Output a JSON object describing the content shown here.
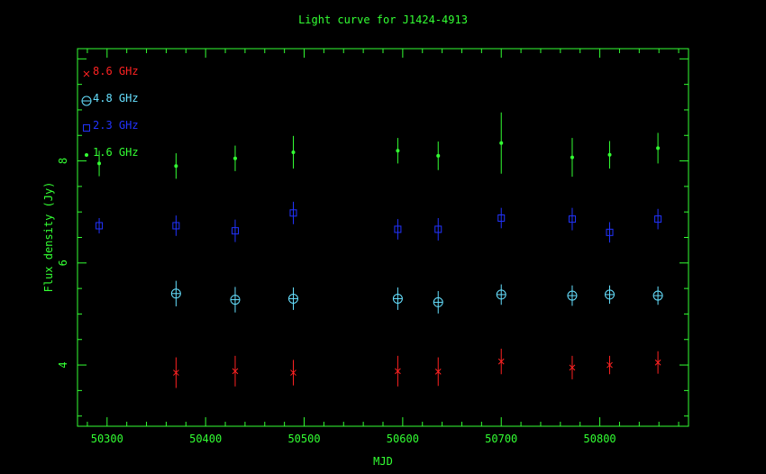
{
  "colors": {
    "background": "#000000",
    "axes": "#33ff33",
    "s8_6": "#ff2222",
    "s4_8": "#66e0ff",
    "s2_3": "#2233ff",
    "s1_6": "#33ff33"
  },
  "chart_data": {
    "type": "scatter",
    "title": "Light curve for J1424-4913",
    "xlabel": "MJD",
    "ylabel": "Flux density (Jy)",
    "xlim": [
      50270,
      50890
    ],
    "ylim": [
      2.8,
      10.2
    ],
    "xticks": [
      50300,
      50400,
      50500,
      50600,
      50700,
      50800
    ],
    "yticks": [
      4,
      6,
      8
    ],
    "grid": false,
    "legend_position": "top-left",
    "series": [
      {
        "name": "8.6 GHz",
        "marker": "x",
        "color": "#ff2222",
        "points": [
          {
            "x": 50370,
            "y": 3.85,
            "err": 0.3
          },
          {
            "x": 50430,
            "y": 3.88,
            "err": 0.3
          },
          {
            "x": 50489,
            "y": 3.85,
            "err": 0.25
          },
          {
            "x": 50595,
            "y": 3.88,
            "err": 0.3
          },
          {
            "x": 50636,
            "y": 3.87,
            "err": 0.28
          },
          {
            "x": 50700,
            "y": 4.07,
            "err": 0.25
          },
          {
            "x": 50772,
            "y": 3.95,
            "err": 0.23
          },
          {
            "x": 50810,
            "y": 4.0,
            "err": 0.18
          },
          {
            "x": 50859,
            "y": 4.05,
            "err": 0.22
          }
        ]
      },
      {
        "name": "4.8 GHz",
        "marker": "circle-plus",
        "color": "#66e0ff",
        "points": [
          {
            "x": 50370,
            "y": 5.4,
            "err": 0.25
          },
          {
            "x": 50430,
            "y": 5.28,
            "err": 0.25
          },
          {
            "x": 50489,
            "y": 5.3,
            "err": 0.22
          },
          {
            "x": 50595,
            "y": 5.3,
            "err": 0.22
          },
          {
            "x": 50636,
            "y": 5.23,
            "err": 0.22
          },
          {
            "x": 50700,
            "y": 5.38,
            "err": 0.2
          },
          {
            "x": 50772,
            "y": 5.36,
            "err": 0.2
          },
          {
            "x": 50810,
            "y": 5.38,
            "err": 0.18
          },
          {
            "x": 50859,
            "y": 5.36,
            "err": 0.18
          }
        ]
      },
      {
        "name": "2.3 GHz",
        "marker": "square",
        "color": "#2233ff",
        "points": [
          {
            "x": 50292,
            "y": 6.73,
            "err": 0.15
          },
          {
            "x": 50370,
            "y": 6.73,
            "err": 0.2
          },
          {
            "x": 50430,
            "y": 6.63,
            "err": 0.22
          },
          {
            "x": 50489,
            "y": 6.98,
            "err": 0.22
          },
          {
            "x": 50595,
            "y": 6.66,
            "err": 0.2
          },
          {
            "x": 50636,
            "y": 6.66,
            "err": 0.22
          },
          {
            "x": 50700,
            "y": 6.88,
            "err": 0.2
          },
          {
            "x": 50772,
            "y": 6.86,
            "err": 0.22
          },
          {
            "x": 50810,
            "y": 6.6,
            "err": 0.2
          },
          {
            "x": 50859,
            "y": 6.86,
            "err": 0.2
          }
        ]
      },
      {
        "name": "1.6 GHz",
        "marker": "dot",
        "color": "#33ff33",
        "points": [
          {
            "x": 50292,
            "y": 7.95,
            "err": 0.25
          },
          {
            "x": 50370,
            "y": 7.9,
            "err": 0.25
          },
          {
            "x": 50430,
            "y": 8.05,
            "err": 0.25
          },
          {
            "x": 50489,
            "y": 8.17,
            "err": 0.32
          },
          {
            "x": 50595,
            "y": 8.2,
            "err": 0.25
          },
          {
            "x": 50636,
            "y": 8.1,
            "err": 0.28
          },
          {
            "x": 50700,
            "y": 8.35,
            "err": 0.6
          },
          {
            "x": 50772,
            "y": 8.07,
            "err": 0.38
          },
          {
            "x": 50810,
            "y": 8.12,
            "err": 0.27
          },
          {
            "x": 50859,
            "y": 8.25,
            "err": 0.3
          }
        ]
      }
    ]
  }
}
